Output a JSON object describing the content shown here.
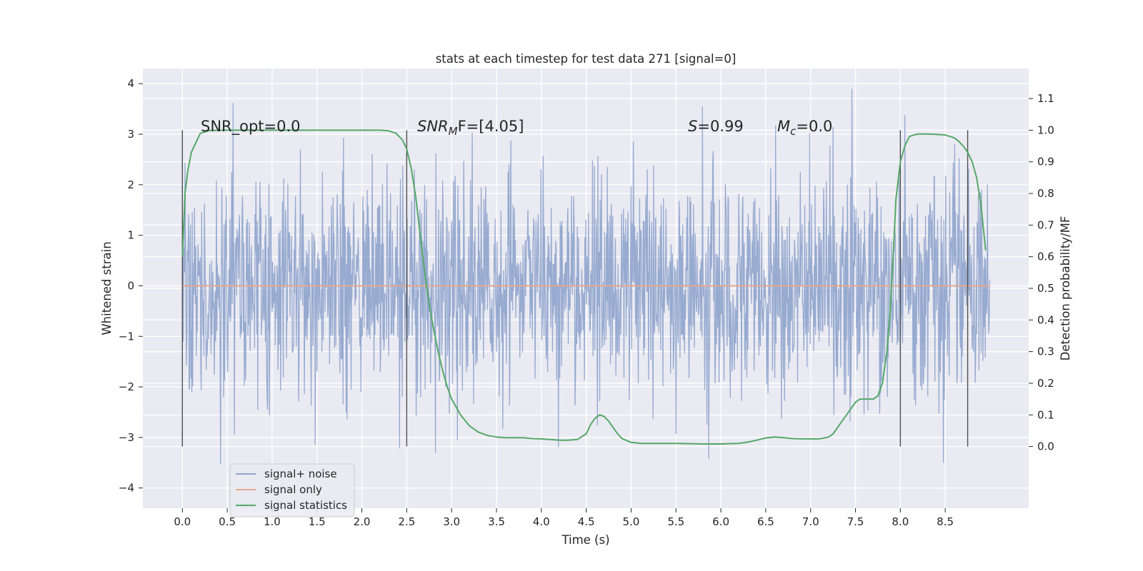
{
  "chart_data": {
    "type": "line",
    "title": "stats at each timestep for test data 271 [signal=0]",
    "xlabel": "Time (s)",
    "ylabel": "Whitened strain",
    "y2label": "Detection probability/MF",
    "xlim": [
      -0.44,
      9.43
    ],
    "ylim": [
      -4.4,
      4.3
    ],
    "y2lim": [
      -0.195,
      1.195
    ],
    "xticks": [
      0.0,
      0.5,
      1.0,
      1.5,
      2.0,
      2.5,
      3.0,
      3.5,
      4.0,
      4.5,
      5.0,
      5.5,
      6.0,
      6.5,
      7.0,
      7.5,
      8.0,
      8.5
    ],
    "xtick_labels": [
      "0.0",
      "0.5",
      "1.0",
      "1.5",
      "2.0",
      "2.5",
      "3.0",
      "3.5",
      "4.0",
      "4.5",
      "5.0",
      "5.5",
      "6.0",
      "6.5",
      "7.0",
      "7.5",
      "8.0",
      "8.5"
    ],
    "yticks": [
      -4,
      -3,
      -2,
      -1,
      0,
      1,
      2,
      3,
      4
    ],
    "ytick_labels": [
      "−4",
      "−3",
      "−2",
      "−1",
      "0",
      "1",
      "2",
      "3",
      "4"
    ],
    "y2ticks": [
      0.0,
      0.1,
      0.2,
      0.3,
      0.4,
      0.5,
      0.6,
      0.7,
      0.8,
      0.9,
      1.0,
      1.1
    ],
    "y2tick_labels": [
      "0.0",
      "0.1",
      "0.2",
      "0.3",
      "0.4",
      "0.5",
      "0.6",
      "0.7",
      "0.8",
      "0.9",
      "1.0",
      "1.1"
    ],
    "grid": true,
    "legend_position": "lower-left",
    "series": [
      {
        "name": "signal+ noise",
        "color": "#8ea3cc",
        "description_values": "dense noise, approx. std 1, spanning roughly -3.9 to 3.9",
        "x_range": [
          0.0,
          9.0
        ]
      },
      {
        "name": "signal only",
        "color": "#e4a990",
        "x": [
          0.0,
          9.0
        ],
        "y": [
          0.0,
          0.0
        ]
      },
      {
        "name": "signal statistics",
        "color": "#55a868",
        "axis": "right",
        "x": [
          0.0,
          0.03,
          0.06,
          0.1,
          0.15,
          0.2,
          0.3,
          0.5,
          1.0,
          1.5,
          2.0,
          2.2,
          2.3,
          2.38,
          2.45,
          2.5,
          2.55,
          2.6,
          2.65,
          2.7,
          2.75,
          2.8,
          2.85,
          2.9,
          2.95,
          3.0,
          3.1,
          3.2,
          3.3,
          3.4,
          3.5,
          3.6,
          3.7,
          3.8,
          3.9,
          4.0,
          4.1,
          4.2,
          4.3,
          4.4,
          4.5,
          4.55,
          4.6,
          4.65,
          4.7,
          4.75,
          4.8,
          4.85,
          4.9,
          5.0,
          5.1,
          5.2,
          5.5,
          5.8,
          6.0,
          6.2,
          6.3,
          6.4,
          6.5,
          6.6,
          6.7,
          6.8,
          6.9,
          7.0,
          7.1,
          7.2,
          7.25,
          7.3,
          7.35,
          7.4,
          7.45,
          7.5,
          7.55,
          7.6,
          7.65,
          7.7,
          7.75,
          7.8,
          7.85,
          7.88,
          7.92,
          7.95,
          8.0,
          8.05,
          8.1,
          8.15,
          8.2,
          8.3,
          8.4,
          8.5,
          8.6,
          8.65,
          8.7,
          8.75,
          8.8,
          8.85,
          8.9,
          8.95
        ],
        "y": [
          0.6,
          0.8,
          0.87,
          0.93,
          0.96,
          0.99,
          0.999,
          1.0,
          1.0,
          1.0,
          1.0,
          1.0,
          0.998,
          0.99,
          0.97,
          0.94,
          0.88,
          0.79,
          0.67,
          0.55,
          0.45,
          0.37,
          0.3,
          0.24,
          0.19,
          0.15,
          0.1,
          0.065,
          0.045,
          0.035,
          0.03,
          0.028,
          0.028,
          0.028,
          0.025,
          0.024,
          0.022,
          0.02,
          0.02,
          0.022,
          0.04,
          0.07,
          0.09,
          0.1,
          0.095,
          0.08,
          0.06,
          0.04,
          0.025,
          0.013,
          0.01,
          0.01,
          0.01,
          0.008,
          0.008,
          0.01,
          0.014,
          0.02,
          0.027,
          0.03,
          0.028,
          0.025,
          0.024,
          0.024,
          0.024,
          0.03,
          0.04,
          0.06,
          0.08,
          0.1,
          0.12,
          0.14,
          0.15,
          0.15,
          0.15,
          0.15,
          0.16,
          0.2,
          0.3,
          0.4,
          0.6,
          0.78,
          0.9,
          0.95,
          0.98,
          0.985,
          0.988,
          0.988,
          0.987,
          0.985,
          0.976,
          0.965,
          0.95,
          0.93,
          0.9,
          0.85,
          0.76,
          0.62
        ]
      }
    ],
    "vlines": [
      0.0,
      2.5,
      8.0,
      8.75
    ],
    "vline_color": "#505050",
    "annotations": {
      "snr_opt": "SNR_opt=0.0",
      "snr_mf_base": "SNR",
      "snr_mf_sub": "M",
      "snr_mf_rest": "F=[4.05]",
      "s_sym": "S",
      "s_val": "=0.99",
      "mc_sym": "M",
      "mc_sub": "c",
      "mc_val": "=0.0"
    }
  }
}
